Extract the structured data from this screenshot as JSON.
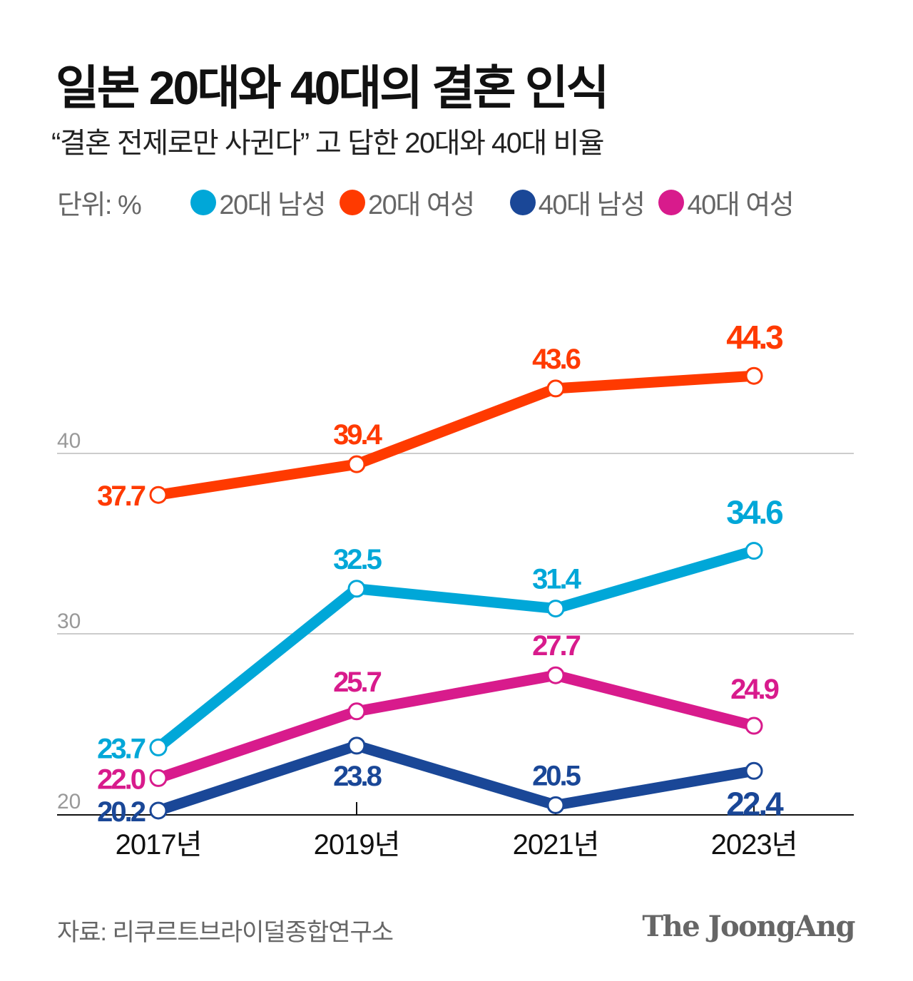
{
  "title": "일본 20대와 40대의 결혼 인식",
  "subtitle": "“결혼 전제로만 사귄다” 고 답한 20대와 40대 비율",
  "unit": "단위: %",
  "source": "자료: 리쿠르트브라이덜종합연구소",
  "logo": "The JoongAng",
  "chart_data": {
    "type": "line",
    "categories": [
      "2017년",
      "2019년",
      "2021년",
      "2023년"
    ],
    "ylim": [
      20,
      46
    ],
    "yticks": [
      "20",
      "30",
      "40"
    ],
    "grid": true,
    "legend_position": "top",
    "series": [
      {
        "name": "20대 남성",
        "color": "#00a7d8",
        "values": [
          23.7,
          32.5,
          31.4,
          34.6
        ],
        "labels": [
          "23.7",
          "32.5",
          "31.4",
          "34.6"
        ]
      },
      {
        "name": "20대 여성",
        "color": "#ff3a00",
        "values": [
          37.7,
          39.4,
          43.6,
          44.3
        ],
        "labels": [
          "37.7",
          "39.4",
          "43.6",
          "44.3"
        ]
      },
      {
        "name": "40대 남성",
        "color": "#1a4797",
        "values": [
          20.2,
          23.8,
          20.5,
          22.4
        ],
        "labels": [
          "20.2",
          "23.8",
          "20.5",
          "22.4"
        ]
      },
      {
        "name": "40대 여성",
        "color": "#d81b8c",
        "values": [
          22.0,
          25.7,
          27.7,
          24.9
        ],
        "labels": [
          "22.0",
          "25.7",
          "27.7",
          "24.9"
        ]
      }
    ]
  }
}
